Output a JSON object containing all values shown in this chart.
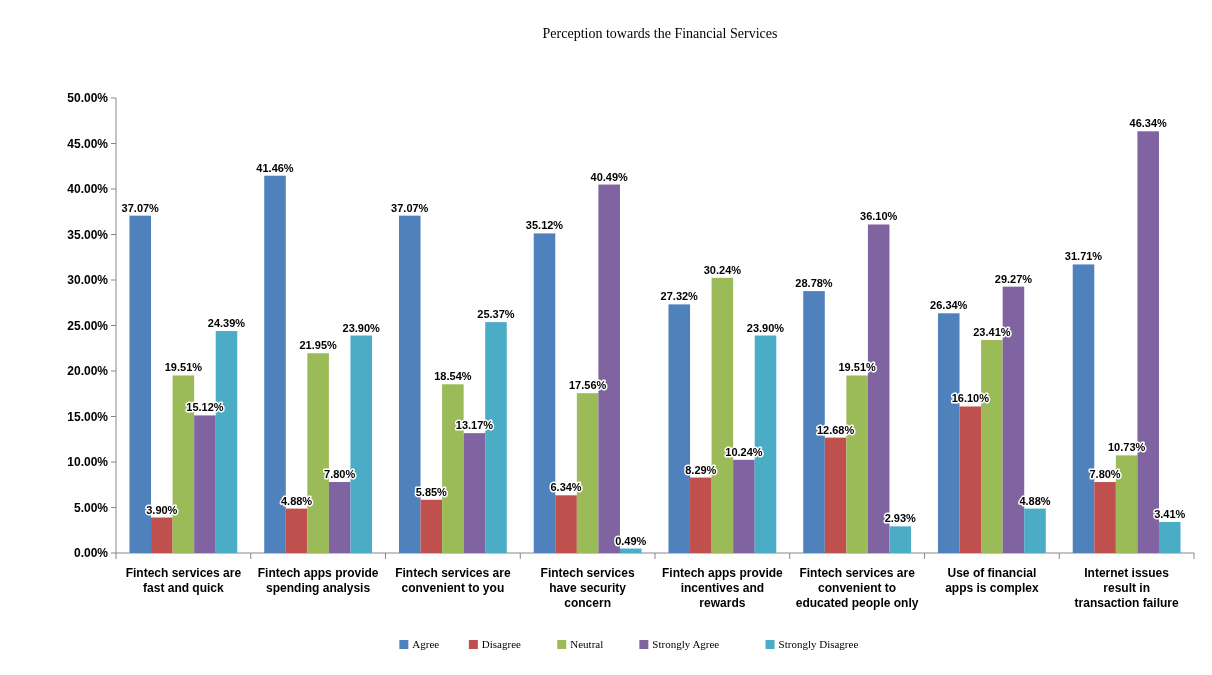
{
  "chart_data": {
    "type": "bar",
    "title": "Perception towards the Financial Services",
    "categories": [
      "Fintech services are fast and quick",
      "Fintech apps provide spending analysis",
      "Fintech services are convenient to you",
      "Fintech services have security concern",
      "Fintech apps provide incentives and rewards",
      "Fintech services are convenient to educated people only",
      "Use of financial apps is complex",
      "Internet issues result in transaction failure"
    ],
    "series": [
      {
        "name": "Agree",
        "color": "#4f81bd",
        "values": [
          37.07,
          41.46,
          37.07,
          35.12,
          27.32,
          28.78,
          26.34,
          31.71
        ],
        "value_labels": [
          "37.07%",
          "41.46%",
          "37.07%",
          "35.12%",
          "27.32%",
          "28.78%",
          "26.34%",
          "31.71%"
        ]
      },
      {
        "name": "Disagree",
        "color": "#c0504d",
        "values": [
          3.9,
          4.88,
          5.85,
          6.34,
          8.29,
          12.68,
          16.1,
          7.8
        ],
        "value_labels": [
          "3.90%",
          "4.88%",
          "5.85%",
          "6.34%",
          "8.29%",
          "12.68%",
          "16.10%",
          "7.80%"
        ]
      },
      {
        "name": "Neutral",
        "color": "#9bbb59",
        "values": [
          19.51,
          21.95,
          18.54,
          17.56,
          30.24,
          19.51,
          23.41,
          10.73
        ],
        "value_labels": [
          "19.51%",
          "21.95%",
          "18.54%",
          "17.56%",
          "30.24%",
          "19.51%",
          "23.41%",
          "10.73%"
        ]
      },
      {
        "name": "Strongly Agree",
        "color": "#8064a2",
        "values": [
          15.12,
          7.8,
          13.17,
          40.49,
          10.24,
          36.1,
          29.27,
          46.34
        ],
        "value_labels": [
          "15.12%",
          "7.80%",
          "13.17%",
          "40.49%",
          "10.24%",
          "36.10%",
          "29.27%",
          "46.34%"
        ]
      },
      {
        "name": "Strongly Disagree",
        "color": "#4bacc6",
        "values": [
          24.39,
          23.9,
          25.37,
          0.49,
          23.9,
          2.93,
          4.88,
          3.41
        ],
        "value_labels": [
          "24.39%",
          "23.90%",
          "25.37%",
          "0.49%",
          "23.90%",
          "2.93%",
          "4.88%",
          "3.41%"
        ]
      }
    ],
    "ylim": [
      0,
      50
    ],
    "yticks": [
      {
        "value": 0,
        "label": "0.00%"
      },
      {
        "value": 5,
        "label": "5.00%"
      },
      {
        "value": 10,
        "label": "10.00%"
      },
      {
        "value": 15,
        "label": "15.00%"
      },
      {
        "value": 20,
        "label": "20.00%"
      },
      {
        "value": 25,
        "label": "25.00%"
      },
      {
        "value": 30,
        "label": "30.00%"
      },
      {
        "value": 35,
        "label": "35.00%"
      },
      {
        "value": 40,
        "label": "40.00%"
      },
      {
        "value": 45,
        "label": "45.00%"
      },
      {
        "value": 50,
        "label": "50.00%"
      }
    ],
    "grid": false,
    "legend": "bottom"
  }
}
